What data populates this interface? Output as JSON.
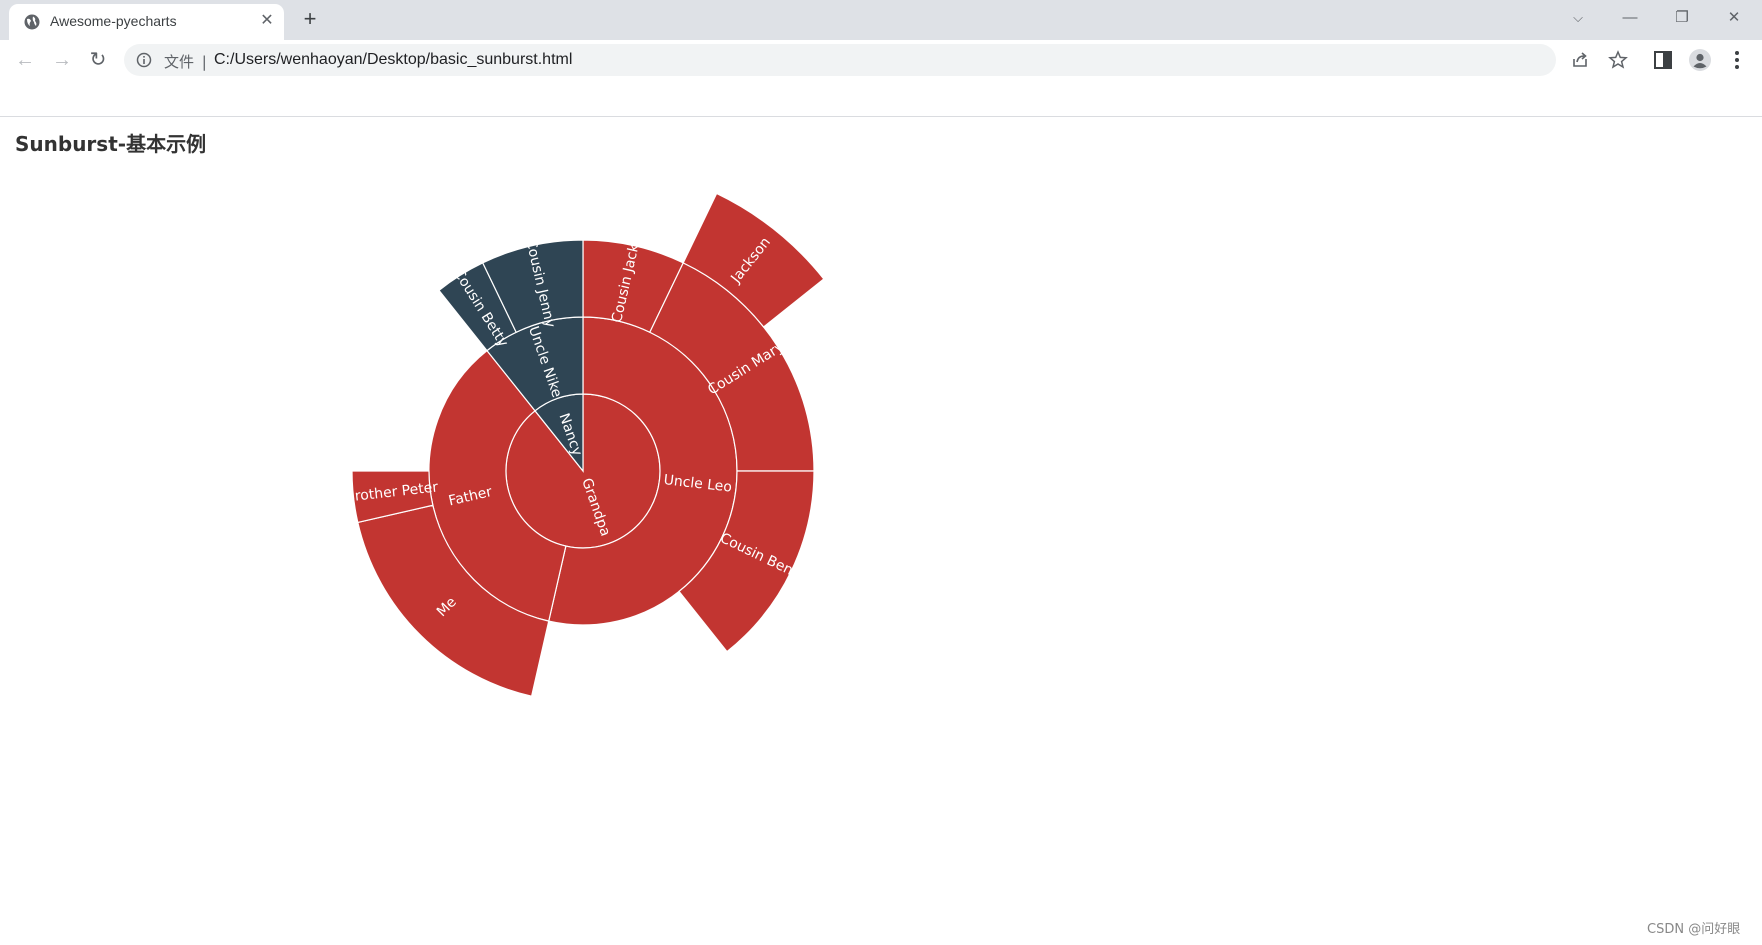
{
  "browser": {
    "tab": {
      "title": "Awesome-pyecharts",
      "favicon": "globe-icon",
      "close_icon": "close-icon"
    },
    "new_tab_icon": "plus-icon",
    "window_controls": [
      "tab-search-icon",
      "minimize-icon",
      "restore-icon",
      "close-window-icon"
    ],
    "address_bar": {
      "scheme_label": "文件",
      "separator": "|",
      "url": "C:/Users/wenhaoyan/Desktop/basic_sunburst.html"
    },
    "toolbar_icons": [
      "back-arrow-icon",
      "forward-arrow-icon",
      "reload-icon",
      "info-icon",
      "share-icon",
      "star-icon",
      "side-panel-icon",
      "profile-avatar-icon",
      "kebab-menu-icon"
    ]
  },
  "page": {
    "watermark": "CSDN @问好眼"
  },
  "chart_data": {
    "type": "sunburst",
    "title": "Sunburst-基本示例",
    "colors": {
      "red": "#c23531",
      "dark": "#2f4554",
      "border": "#ffffff",
      "label": "#ffffff"
    },
    "tree": [
      {
        "name": "Grandpa",
        "color": "#c23531",
        "children": [
          {
            "name": "Uncle Leo",
            "value": 15,
            "children": [
              {
                "name": "Cousin Jack",
                "value": 2
              },
              {
                "name": "Cousin Mary",
                "value": 5,
                "children": [
                  {
                    "name": "Jackson",
                    "value": 2
                  }
                ]
              },
              {
                "name": "Cousin Ben",
                "value": 4
              }
            ]
          },
          {
            "name": "Father",
            "value": 10,
            "children": [
              {
                "name": "Me",
                "value": 5
              },
              {
                "name": "Brother Peter",
                "value": 1
              }
            ]
          }
        ]
      },
      {
        "name": "Nancy",
        "color": "#2f4554",
        "children": [
          {
            "name": "Uncle Nike",
            "children": [
              {
                "name": "Cousin Betty",
                "value": 1
              },
              {
                "name": "Cousin Jenny",
                "value": 2
              }
            ]
          }
        ]
      }
    ]
  }
}
